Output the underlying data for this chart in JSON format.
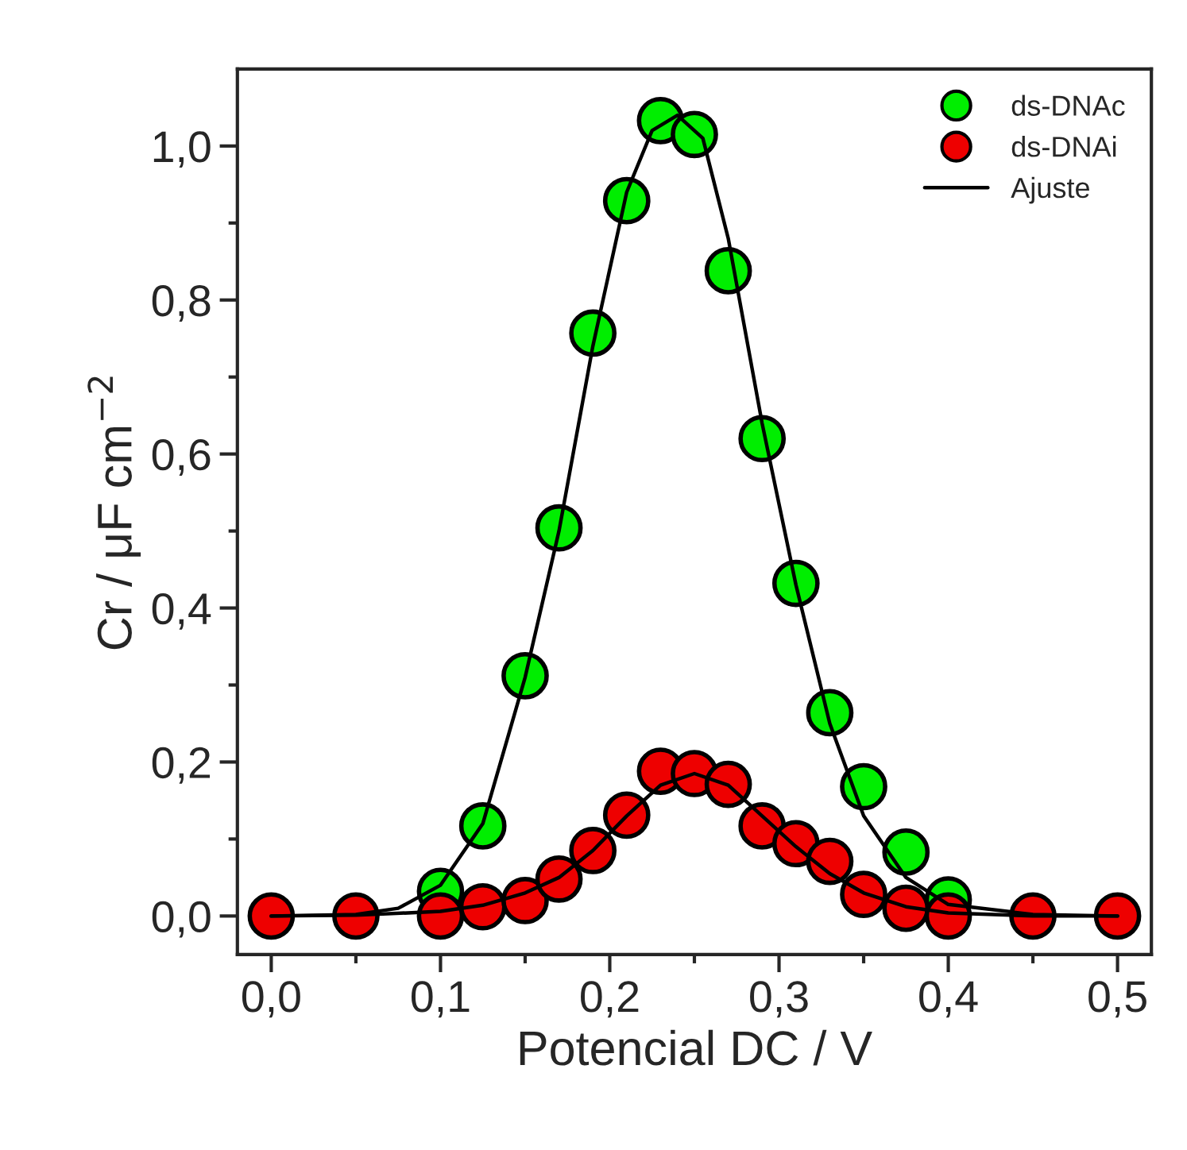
{
  "chart_data": {
    "type": "scatter",
    "xlabel": "Potencial DC / V",
    "ylabel": "Cr / μF cm$^{−2}$",
    "xlim": [
      -0.02,
      0.52
    ],
    "ylim": [
      -0.05,
      1.1
    ],
    "xticks": [
      {
        "value": 0.0,
        "label": "0,0"
      },
      {
        "value": 0.05,
        "label": null
      },
      {
        "value": 0.1,
        "label": "0,1"
      },
      {
        "value": 0.15,
        "label": null
      },
      {
        "value": 0.2,
        "label": "0,2"
      },
      {
        "value": 0.25,
        "label": null
      },
      {
        "value": 0.3,
        "label": "0,3"
      },
      {
        "value": 0.35,
        "label": null
      },
      {
        "value": 0.4,
        "label": "0,4"
      },
      {
        "value": 0.45,
        "label": null
      },
      {
        "value": 0.5,
        "label": "0,5"
      }
    ],
    "yticks": [
      {
        "value": 0.0,
        "label": "0,0"
      },
      {
        "value": 0.1,
        "label": null
      },
      {
        "value": 0.2,
        "label": "0,2"
      },
      {
        "value": 0.3,
        "label": null
      },
      {
        "value": 0.4,
        "label": "0,4"
      },
      {
        "value": 0.5,
        "label": null
      },
      {
        "value": 0.6,
        "label": "0,6"
      },
      {
        "value": 0.7,
        "label": null
      },
      {
        "value": 0.8,
        "label": "0,8"
      },
      {
        "value": 0.9,
        "label": null
      },
      {
        "value": 1.0,
        "label": "1,0"
      }
    ],
    "grid": false,
    "legend": "top right",
    "marker": "circle",
    "series": [
      {
        "type": "line",
        "name": "Ajuste",
        "color": "#000000",
        "line_style": "solid",
        "marker": "none",
        "x": [
          0,
          0.05,
          0.075,
          0.1,
          0.125,
          0.15,
          0.17,
          0.19,
          0.21,
          0.225,
          0.24,
          0.255,
          0.27,
          0.29,
          0.31,
          0.33,
          0.35,
          0.375,
          0.4,
          0.45,
          0.5
        ],
        "values": [
          0,
          0.002,
          0.01,
          0.04,
          0.12,
          0.31,
          0.5,
          0.74,
          0.94,
          1.02,
          1.04,
          1.01,
          0.88,
          0.64,
          0.43,
          0.25,
          0.13,
          0.05,
          0.015,
          0.002,
          0
        ]
      },
      {
        "type": "line",
        "color": "#000000",
        "line_style": "solid",
        "marker": "none",
        "x": [
          0,
          0.05,
          0.1,
          0.125,
          0.15,
          0.17,
          0.19,
          0.21,
          0.23,
          0.25,
          0.27,
          0.29,
          0.31,
          0.33,
          0.35,
          0.375,
          0.4,
          0.45,
          0.5
        ],
        "values": [
          0,
          0.001,
          0.006,
          0.014,
          0.03,
          0.05,
          0.085,
          0.13,
          0.17,
          0.185,
          0.17,
          0.13,
          0.09,
          0.055,
          0.03,
          0.012,
          0.004,
          0,
          0
        ]
      },
      {
        "name": "ds-DNAc",
        "color": "#00ee00",
        "x": [
          0.1,
          0.125,
          0.15,
          0.17,
          0.19,
          0.21,
          0.23,
          0.25,
          0.27,
          0.29,
          0.31,
          0.33,
          0.35,
          0.375,
          0.4
        ],
        "values": [
          0.032,
          0.117,
          0.312,
          0.504,
          0.757,
          0.929,
          1.033,
          1.015,
          0.838,
          0.62,
          0.432,
          0.264,
          0.168,
          0.083,
          0.021
        ]
      },
      {
        "name": "ds-DNAi",
        "color": "#ee0000",
        "x": [
          0,
          0.05,
          0.1,
          0.125,
          0.15,
          0.17,
          0.19,
          0.21,
          0.23,
          0.25,
          0.27,
          0.29,
          0.31,
          0.33,
          0.35,
          0.375,
          0.4,
          0.45,
          0.5
        ],
        "values": [
          0,
          0,
          0,
          0.012,
          0.02,
          0.048,
          0.085,
          0.131,
          0.188,
          0.185,
          0.171,
          0.117,
          0.094,
          0.071,
          0.028,
          0.01,
          0,
          0,
          0
        ]
      }
    ]
  }
}
